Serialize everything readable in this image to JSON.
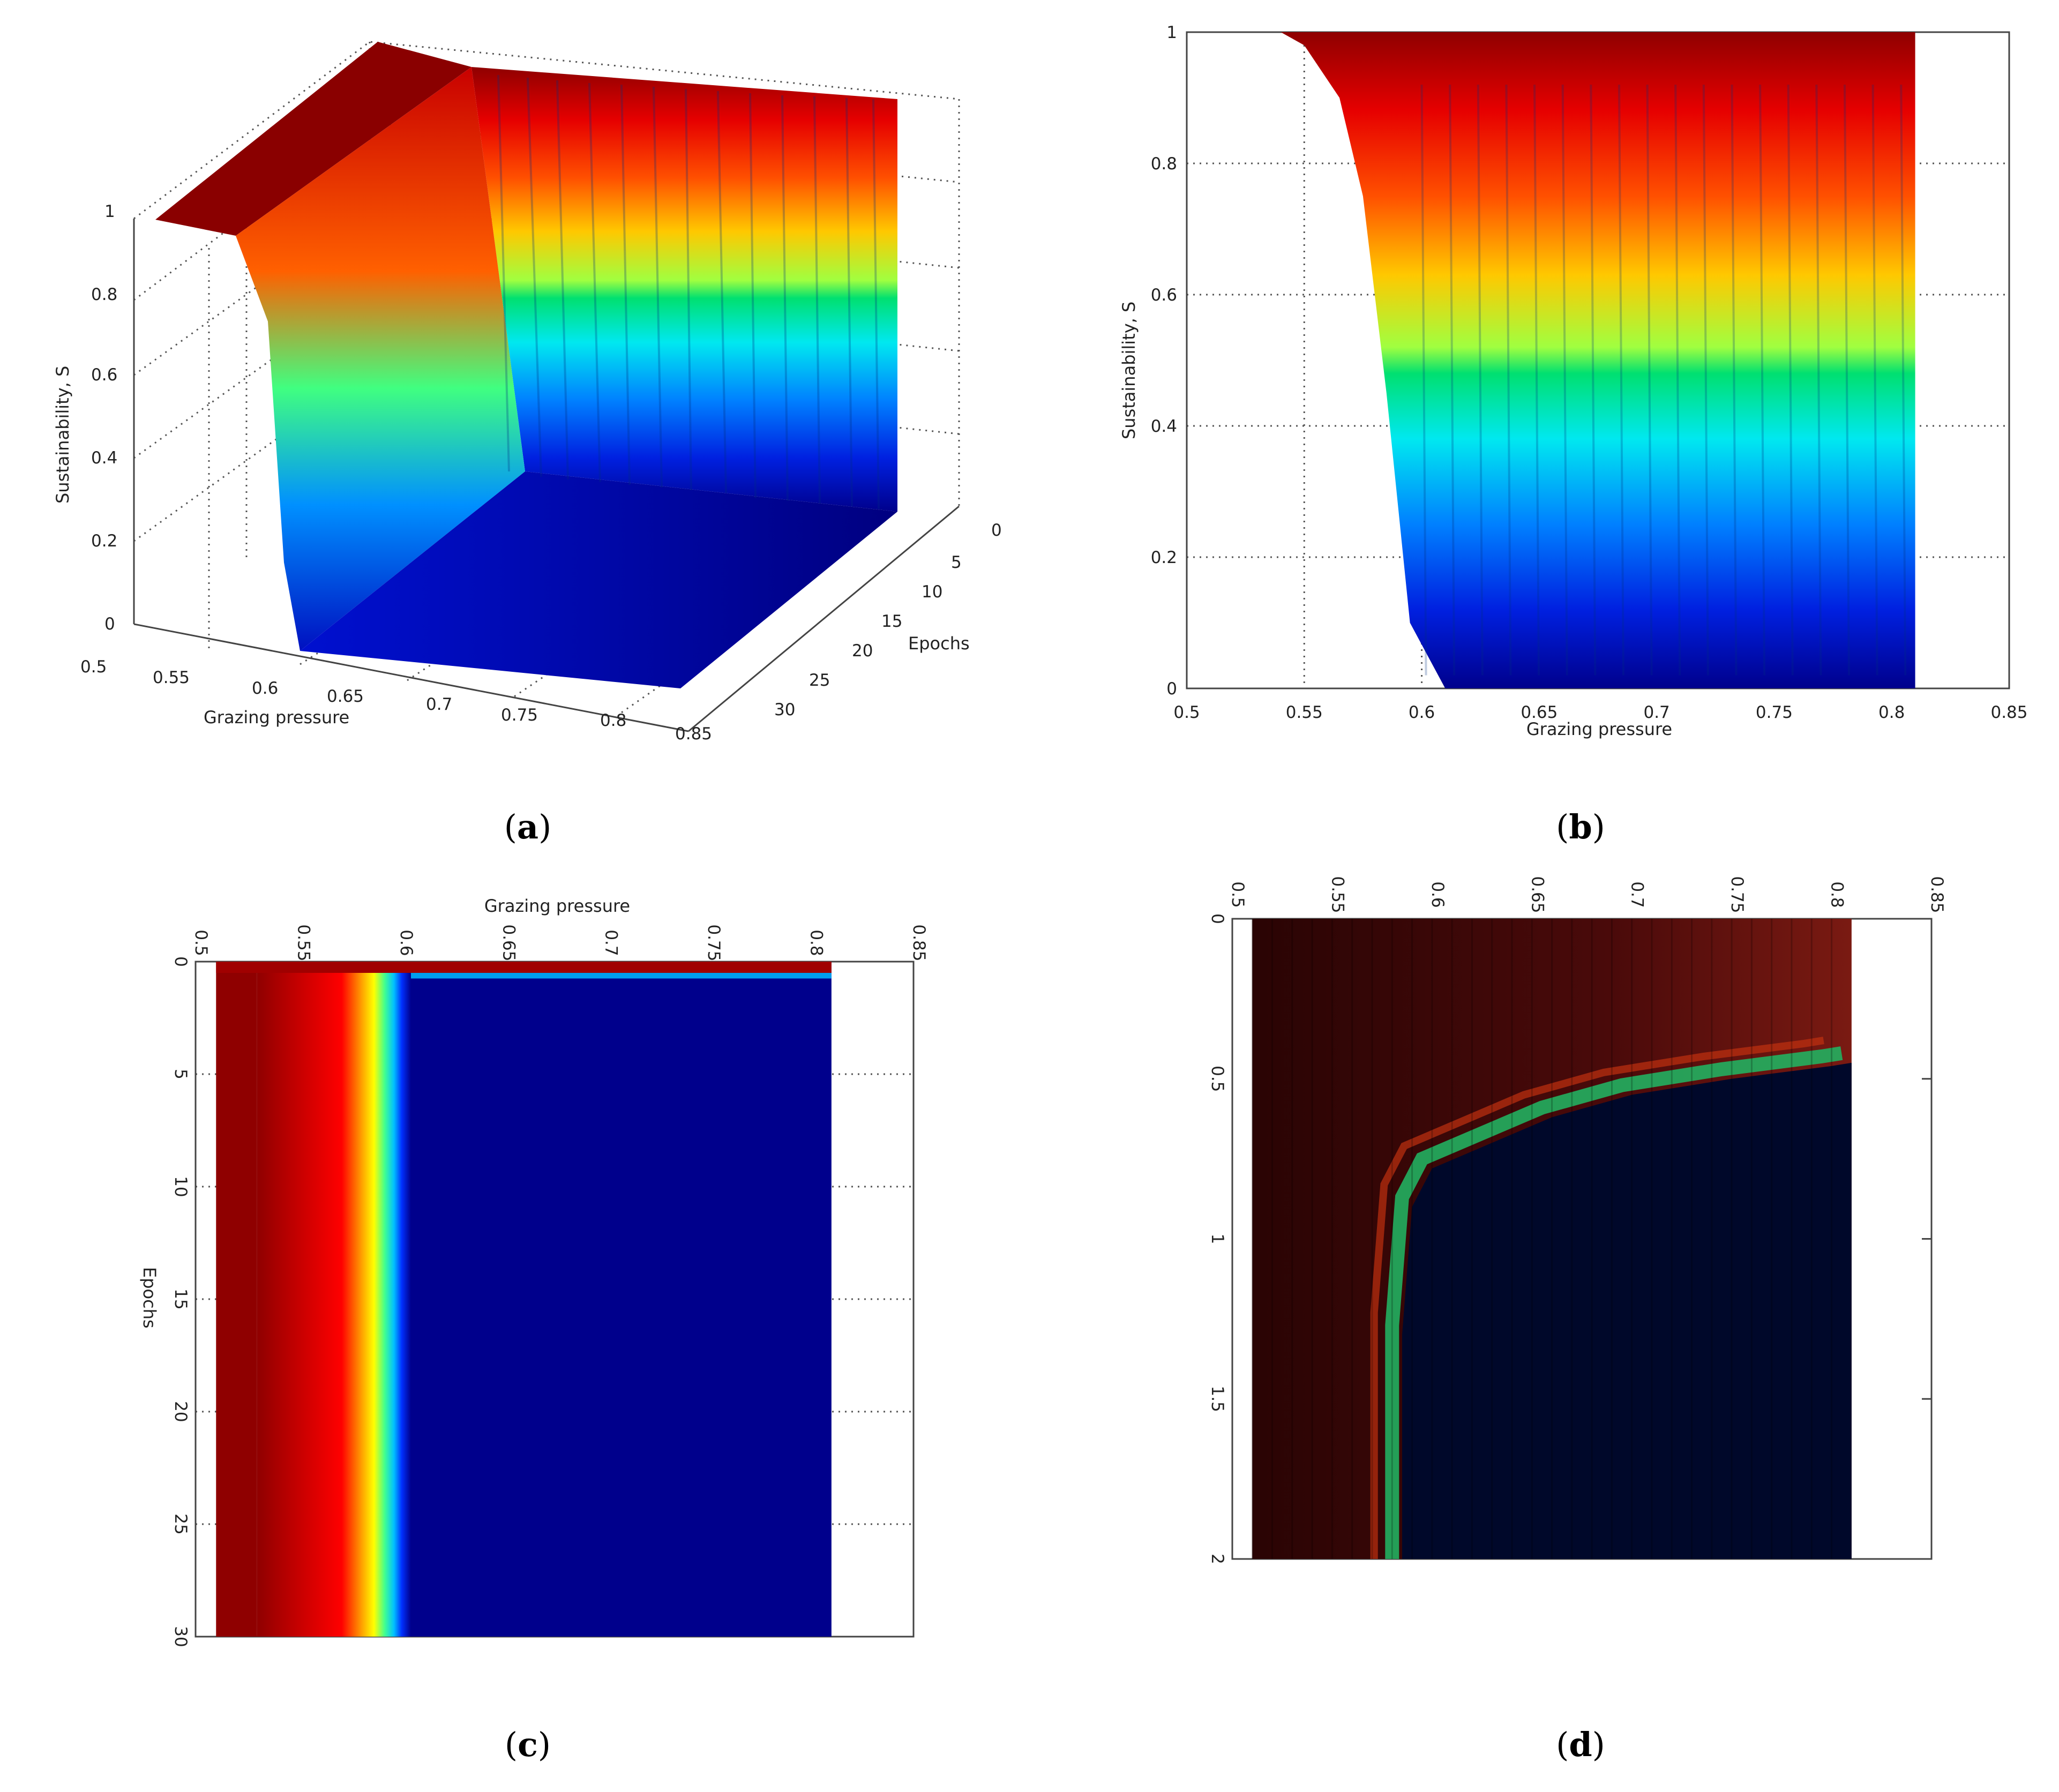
{
  "panels": {
    "a": {
      "caption_open": "(",
      "caption_letter": "a",
      "caption_close": ")"
    },
    "b": {
      "caption_open": "(",
      "caption_letter": "b",
      "caption_close": ")"
    },
    "c": {
      "caption_open": "(",
      "caption_letter": "c",
      "caption_close": ")"
    },
    "d": {
      "caption_open": "(",
      "caption_letter": "d",
      "caption_close": ")"
    }
  },
  "colormap": [
    "#00008f",
    "#0000ff",
    "#007fff",
    "#00ffff",
    "#7fff7f",
    "#ffff00",
    "#ff7f00",
    "#ff0000",
    "#7f0000"
  ],
  "chart_data": [
    {
      "panel": "a",
      "type": "surface",
      "xlabel": "Grazing pressure",
      "ylabel": "Epochs",
      "zlabel": "Sustainability, S",
      "xticks": [
        "0.5",
        "0.55",
        "0.6",
        "0.65",
        "0.7",
        "0.75",
        "0.8",
        "0.85"
      ],
      "yticks": [
        "0",
        "5",
        "10",
        "15",
        "20",
        "25",
        "30"
      ],
      "zticks": [
        "0",
        "0.2",
        "0.4",
        "0.6",
        "0.8",
        "1"
      ],
      "xlim": [
        0.5,
        0.85
      ],
      "ylim": [
        0,
        30
      ],
      "zlim": [
        0,
        1
      ],
      "profile": {
        "x": [
          0.51,
          0.55,
          0.56,
          0.57,
          0.58,
          0.59,
          0.6,
          0.81
        ],
        "s": [
          1,
          0.99,
          0.95,
          0.75,
          0.35,
          0.08,
          0.0,
          0.0
        ]
      },
      "grid": true
    },
    {
      "panel": "b",
      "type": "surface",
      "xlabel": "Grazing pressure",
      "ylabel": "Sustainability, S",
      "xticks": [
        "0.5",
        "0.55",
        "0.6",
        "0.65",
        "0.7",
        "0.75",
        "0.8",
        "0.85"
      ],
      "yticks": [
        "0",
        "0.2",
        "0.4",
        "0.6",
        "0.8",
        "1"
      ],
      "xlim": [
        0.5,
        0.85
      ],
      "ylim": [
        0,
        1
      ],
      "edge": {
        "x": [
          0.54,
          0.55,
          0.565,
          0.575,
          0.585,
          0.595,
          0.61
        ],
        "s": [
          1,
          0.98,
          0.9,
          0.75,
          0.45,
          0.1,
          0.0
        ]
      },
      "x_right": 0.81,
      "grid": true
    },
    {
      "panel": "c",
      "type": "heatmap",
      "xlabel": "Grazing pressure",
      "ylabel": "Epochs",
      "xticks": [
        "0.5",
        "0.55",
        "0.6",
        "0.65",
        "0.7",
        "0.75",
        "0.8",
        "0.85"
      ],
      "yticks": [
        "0",
        "5",
        "10",
        "15",
        "20",
        "25",
        "30"
      ],
      "xlim": [
        0.5,
        0.85
      ],
      "ylim": [
        0,
        30
      ],
      "x_range": [
        0.51,
        0.81
      ],
      "threshold_x": 0.575,
      "grid": true
    },
    {
      "panel": "d",
      "type": "heatmap",
      "xticks": [
        "0.5",
        "0.55",
        "0.6",
        "0.65",
        "0.7",
        "0.75",
        "0.8",
        "0.85"
      ],
      "yticks": [
        "0",
        "0.5",
        "1",
        "1.5",
        "2"
      ],
      "xlim": [
        0.5,
        0.85
      ],
      "ylim": [
        0,
        2
      ],
      "x_range": [
        0.51,
        0.81
      ],
      "boundary": {
        "x": [
          0.585,
          0.59,
          0.6,
          0.63,
          0.66,
          0.7,
          0.75,
          0.8,
          0.81
        ],
        "epoch": [
          1.3,
          0.9,
          0.78,
          0.7,
          0.62,
          0.55,
          0.5,
          0.46,
          0.45
        ]
      },
      "grid": false
    }
  ]
}
